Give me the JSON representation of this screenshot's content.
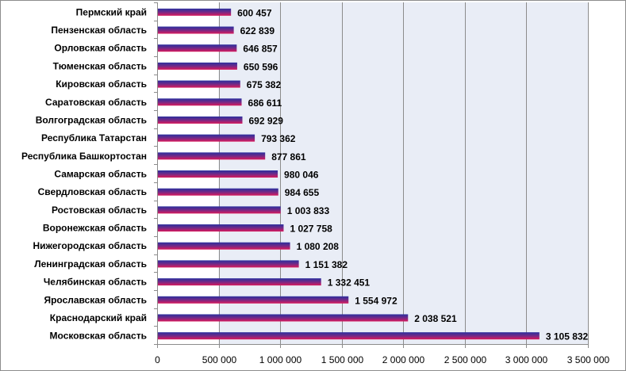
{
  "chart_data": {
    "type": "bar",
    "orientation": "horizontal",
    "categories": [
      "Пермский край",
      "Пензенская область",
      "Орловская область",
      "Тюменская область",
      "Кировская область",
      "Саратовская область",
      "Волгоградская область",
      "Республика Татарстан",
      "Республика Башкортостан",
      "Самарская область",
      "Свердловская область",
      "Ростовская область",
      "Воронежская область",
      "Нижегородская область",
      "Ленинградская область",
      "Челябинская область",
      "Ярославская область",
      "Краснодарский край",
      "Московская область"
    ],
    "values": [
      600457,
      622839,
      646857,
      650596,
      675382,
      686611,
      692929,
      793362,
      877861,
      980046,
      984655,
      1003833,
      1027758,
      1080208,
      1151382,
      1332451,
      1554972,
      2038521,
      3105832
    ],
    "value_labels": [
      "600 457",
      "622 839",
      "646 857",
      "650 596",
      "675 382",
      "686 611",
      "692 929",
      "793 362",
      "877 861",
      "980 046",
      "984 655",
      "1 003 833",
      "1 027 758",
      "1 080 208",
      "1 151 382",
      "1 332 451",
      "1 554 972",
      "2 038 521",
      "3 105 832"
    ],
    "xlim": [
      0,
      3500000
    ],
    "xticks": [
      0,
      500000,
      1000000,
      1500000,
      2000000,
      2500000,
      3000000,
      3500000
    ],
    "xtick_labels": [
      "0",
      "500 000",
      "1 000 000",
      "1 500 000",
      "2 000 000",
      "2 500 000",
      "3 000 000",
      "3 500 000"
    ],
    "title": "",
    "xlabel": "",
    "ylabel": "",
    "grid": "vertical",
    "legend": "none",
    "colors": {
      "bar_top": "#2b2f9e",
      "bar_bottom": "#d9195c",
      "plot_bg": "#e9edf6",
      "gridline": "#8c8c8c",
      "axis": "#8c8c8c"
    }
  }
}
